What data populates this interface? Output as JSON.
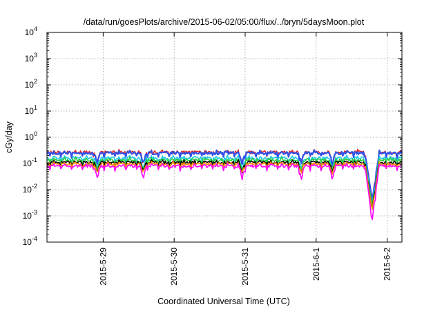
{
  "chart_data": {
    "type": "line",
    "title": "/data/run/goesPlots/archive/2015-06-02/05:00/flux/../bryn/5daysMoon.plot",
    "xlabel": "Coordinated Universal Time (UTC)",
    "ylabel": "cGy/day",
    "yscale": "log",
    "ylim": [
      0.0001,
      10000
    ],
    "xlim": [
      "2015-05-28T05:00",
      "2015-06-02T05:00"
    ],
    "grid": true,
    "y_ticks": [
      {
        "base": "10",
        "exp": "-4"
      },
      {
        "base": "10",
        "exp": "-3"
      },
      {
        "base": "10",
        "exp": "-2"
      },
      {
        "base": "10",
        "exp": "-1"
      },
      {
        "base": "10",
        "exp": "0"
      },
      {
        "base": "10",
        "exp": "1"
      },
      {
        "base": "10",
        "exp": "2"
      },
      {
        "base": "10",
        "exp": "3"
      },
      {
        "base": "10",
        "exp": "4"
      }
    ],
    "x_ticks": [
      "2015-5-29",
      "2015-5-30",
      "2015-5-31",
      "2015-6-1",
      "2015-6-2"
    ],
    "series": [
      {
        "color": "#e8231e",
        "level": 0.27,
        "dip_scale": 0.36
      },
      {
        "color": "#3050e8",
        "level": 0.25,
        "dip_scale": 0.38
      },
      {
        "color": "#1ec8e6",
        "level": 0.16,
        "dip_scale": 0.4
      },
      {
        "color": "#2ecc40",
        "level": 0.135,
        "dip_scale": 0.4
      },
      {
        "color": "#000000",
        "level": 0.11,
        "dip_scale": 0.42
      },
      {
        "color": "#ff8c00",
        "level": 0.095,
        "dip_scale": 0.45
      },
      {
        "color": "#ff00ff",
        "level": 0.08,
        "dip_scale": 0.3
      }
    ]
  }
}
